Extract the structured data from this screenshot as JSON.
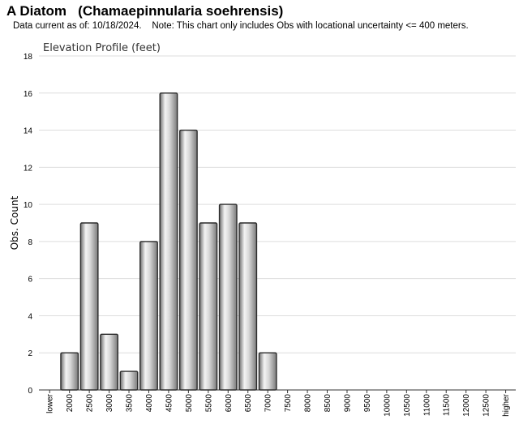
{
  "header": {
    "title": "A Diatom   (Chamaepinnularia soehrensis)",
    "subtitle": "Data current as of: 10/18/2024.    Note: This chart only includes Obs with locational uncertainty <= 400 meters."
  },
  "chart_data": {
    "type": "bar",
    "title": "Elevation Profile (feet)",
    "xlabel": "",
    "ylabel": "Obs. Count",
    "ylim": [
      0,
      18
    ],
    "yticks": [
      0,
      2,
      4,
      6,
      8,
      10,
      12,
      14,
      16,
      18
    ],
    "grid": true,
    "categories": [
      "lower",
      "2000",
      "2500",
      "3000",
      "3500",
      "4000",
      "4500",
      "5000",
      "5500",
      "6000",
      "6500",
      "7000",
      "7500",
      "8000",
      "8500",
      "9000",
      "9500",
      "10000",
      "10500",
      "11000",
      "11500",
      "12000",
      "12500",
      "higher"
    ],
    "values": [
      0,
      2,
      9,
      3,
      1,
      8,
      16,
      14,
      9,
      10,
      9,
      2,
      0,
      0,
      0,
      0,
      0,
      0,
      0,
      0,
      0,
      0,
      0,
      0
    ],
    "bar_color": "#b8b8b8"
  }
}
